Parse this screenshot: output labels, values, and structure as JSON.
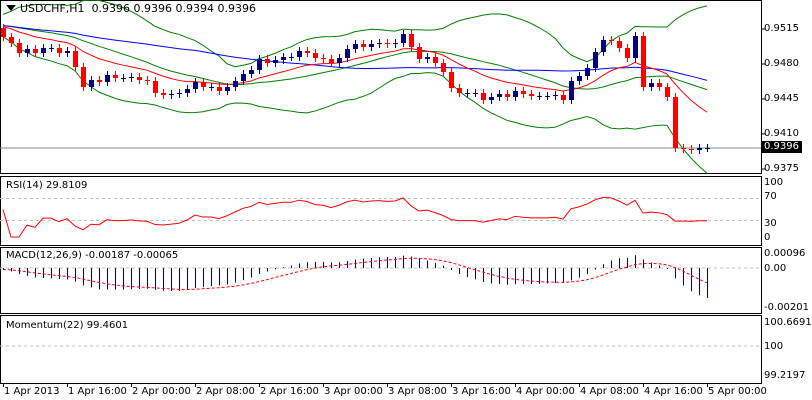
{
  "header": {
    "symbol_timeframe": "USDCHF,H1",
    "ohlc": "0.9396 0.9396 0.9394 0.9396"
  },
  "colors": {
    "bull": "#000080",
    "bear": "#ff0000",
    "bands": "#008000",
    "ma_blue": "#0000ff",
    "ma_red": "#ff0000",
    "rsi": "#ff0000",
    "macd_hist": "#000080",
    "macd_signal": "#ff0000",
    "momentum": "#000080",
    "level_line": "#c0c0c0"
  },
  "chart_data": {
    "type": "candlestick",
    "title": "USDCHF,H1",
    "price_ticks": [
      "0.9515",
      "0.9480",
      "0.9445",
      "0.9410",
      "0.9375"
    ],
    "current_price": "0.9396",
    "x_labels": [
      "1 Apr 2013",
      "1 Apr 16:00",
      "2 Apr 00:00",
      "2 Apr 08:00",
      "2 Apr 16:00",
      "3 Apr 00:00",
      "3 Apr 08:00",
      "3 Apr 16:00",
      "4 Apr 00:00",
      "4 Apr 08:00",
      "4 Apr 16:00",
      "5 Apr 00:00"
    ],
    "first_open": 0.9516,
    "closes": [
      0.9507,
      0.9501,
      0.9491,
      0.9495,
      0.9491,
      0.9496,
      0.9496,
      0.9491,
      0.9493,
      0.9477,
      0.9457,
      0.9464,
      0.9462,
      0.9469,
      0.9466,
      0.9466,
      0.9467,
      0.9464,
      0.9463,
      0.9451,
      0.9449,
      0.945,
      0.9451,
      0.9455,
      0.9462,
      0.9457,
      0.9457,
      0.9453,
      0.9457,
      0.9463,
      0.947,
      0.9474,
      0.9485,
      0.9481,
      0.9484,
      0.9487,
      0.9487,
      0.9493,
      0.9491,
      0.9486,
      0.9485,
      0.9481,
      0.9486,
      0.9495,
      0.95,
      0.9497,
      0.95,
      0.9501,
      0.95,
      0.9501,
      0.951,
      0.9497,
      0.9485,
      0.9487,
      0.9481,
      0.9472,
      0.9456,
      0.9451,
      0.9451,
      0.9451,
      0.9444,
      0.9447,
      0.945,
      0.9447,
      0.9453,
      0.945,
      0.9448,
      0.9448,
      0.9448,
      0.9449,
      0.9444,
      0.9463,
      0.9468,
      0.9476,
      0.9492,
      0.9504,
      0.9503,
      0.9496,
      0.9486,
      0.9508,
      0.9457,
      0.9461,
      0.9457,
      0.9447,
      0.9396,
      0.9395,
      0.9394,
      0.9396,
      0.9396
    ],
    "indicators": {
      "rsi": {
        "label": "RSI(14)",
        "value": "29.8109",
        "levels": [
          70,
          30
        ],
        "ticks": [
          "100",
          "70",
          "30",
          "0"
        ]
      },
      "macd": {
        "label": "MACD(12,26,9)",
        "main": "-0.00187",
        "signal": "-0.00065",
        "ticks": [
          "0.00096",
          "0.00",
          "-0.00201"
        ]
      },
      "momentum": {
        "label": "Momentum(22)",
        "value": "99.4601",
        "level": 100,
        "ticks": [
          "100.6691",
          "100",
          "99.2197"
        ]
      }
    }
  }
}
